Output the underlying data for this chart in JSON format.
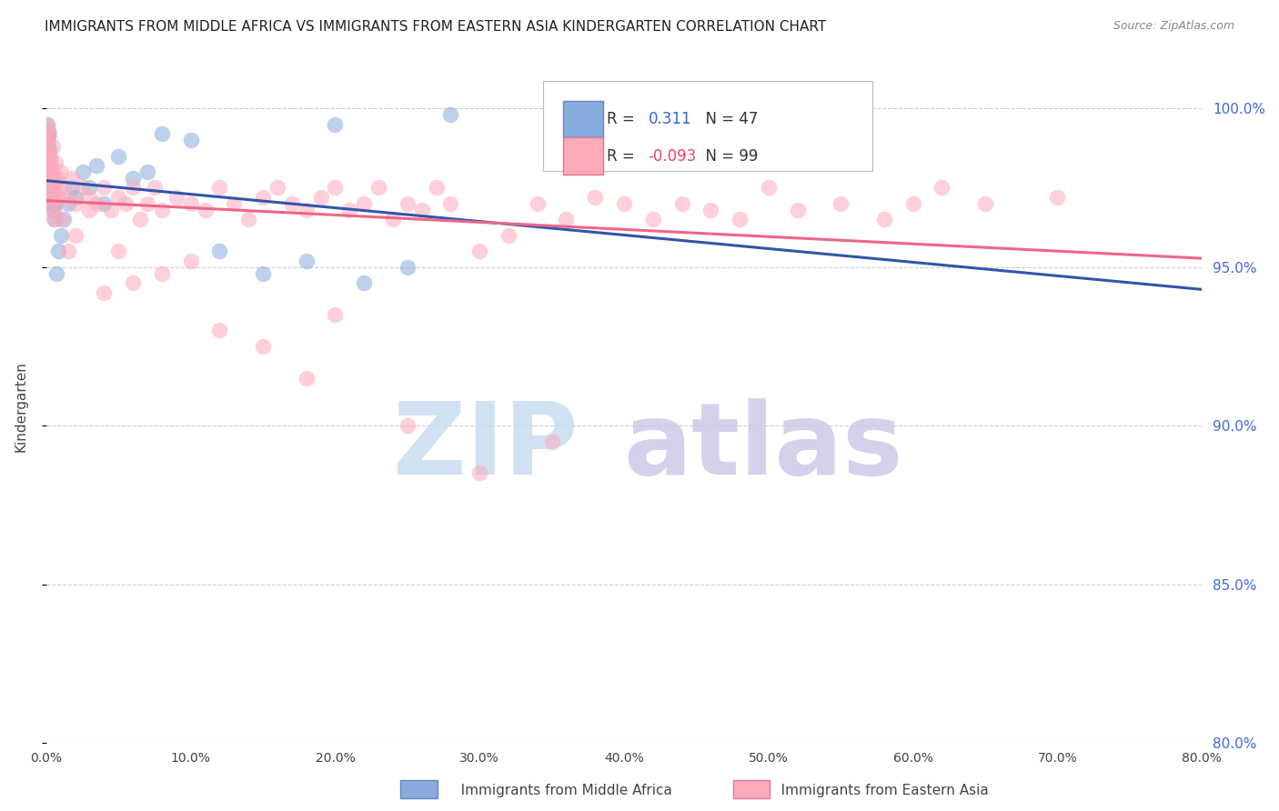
{
  "title": "IMMIGRANTS FROM MIDDLE AFRICA VS IMMIGRANTS FROM EASTERN ASIA KINDERGARTEN CORRELATION CHART",
  "source": "Source: ZipAtlas.com",
  "ylabel": "Kindergarten",
  "series_blue": {
    "label": "Immigrants from Middle Africa",
    "color_scatter": "#88AADD",
    "color_line": "#3355AA",
    "R": 0.311,
    "N": 47,
    "x": [
      0.05,
      0.08,
      0.1,
      0.1,
      0.12,
      0.15,
      0.15,
      0.18,
      0.2,
      0.2,
      0.22,
      0.25,
      0.25,
      0.28,
      0.3,
      0.3,
      0.32,
      0.35,
      0.38,
      0.4,
      0.45,
      0.5,
      0.55,
      0.6,
      0.7,
      0.8,
      1.0,
      1.2,
      1.5,
      1.8,
      2.0,
      2.5,
      3.0,
      3.5,
      4.0,
      5.0,
      6.0,
      7.0,
      8.0,
      10.0,
      12.0,
      15.0,
      18.0,
      20.0,
      22.0,
      25.0,
      28.0
    ],
    "y": [
      99.2,
      99.5,
      99.0,
      98.8,
      99.3,
      98.5,
      99.1,
      98.2,
      98.7,
      97.8,
      98.0,
      97.9,
      98.4,
      97.5,
      98.0,
      97.6,
      97.3,
      97.5,
      97.2,
      97.0,
      97.5,
      96.8,
      97.0,
      96.5,
      94.8,
      95.5,
      96.0,
      96.5,
      97.0,
      97.5,
      97.2,
      98.0,
      97.5,
      98.2,
      97.0,
      98.5,
      97.8,
      98.0,
      99.2,
      99.0,
      95.5,
      94.8,
      95.2,
      99.5,
      94.5,
      95.0,
      99.8
    ]
  },
  "series_pink": {
    "label": "Immigrants from Eastern Asia",
    "color_scatter": "#FFAABB",
    "color_line": "#EE6688",
    "R": -0.093,
    "N": 99,
    "x": [
      0.05,
      0.08,
      0.1,
      0.12,
      0.15,
      0.18,
      0.2,
      0.22,
      0.25,
      0.28,
      0.3,
      0.32,
      0.35,
      0.38,
      0.4,
      0.45,
      0.5,
      0.55,
      0.6,
      0.65,
      0.7,
      0.8,
      0.9,
      1.0,
      1.2,
      1.5,
      1.8,
      2.0,
      2.5,
      3.0,
      3.5,
      4.0,
      4.5,
      5.0,
      5.5,
      6.0,
      6.5,
      7.0,
      7.5,
      8.0,
      9.0,
      10.0,
      11.0,
      12.0,
      13.0,
      14.0,
      15.0,
      16.0,
      17.0,
      18.0,
      19.0,
      20.0,
      21.0,
      22.0,
      23.0,
      24.0,
      25.0,
      26.0,
      27.0,
      28.0,
      30.0,
      32.0,
      34.0,
      36.0,
      38.0,
      40.0,
      42.0,
      44.0,
      46.0,
      48.0,
      50.0,
      52.0,
      55.0,
      58.0,
      60.0,
      62.0,
      65.0,
      70.0,
      0.1,
      0.2,
      0.3,
      0.5,
      0.7,
      1.0,
      1.5,
      2.0,
      3.0,
      4.0,
      5.0,
      6.0,
      8.0,
      10.0,
      12.0,
      15.0,
      18.0,
      20.0,
      25.0,
      30.0,
      35.0
    ],
    "y": [
      99.5,
      99.3,
      99.0,
      98.8,
      98.5,
      98.3,
      99.2,
      98.0,
      97.8,
      98.5,
      97.5,
      98.2,
      97.3,
      98.0,
      97.6,
      98.8,
      97.2,
      97.8,
      97.0,
      98.3,
      97.5,
      97.8,
      97.2,
      98.0,
      97.5,
      97.2,
      97.8,
      97.0,
      97.5,
      97.2,
      97.0,
      97.5,
      96.8,
      97.2,
      97.0,
      97.5,
      96.5,
      97.0,
      97.5,
      96.8,
      97.2,
      97.0,
      96.8,
      97.5,
      97.0,
      96.5,
      97.2,
      97.5,
      97.0,
      96.8,
      97.2,
      97.5,
      96.8,
      97.0,
      97.5,
      96.5,
      97.0,
      96.8,
      97.5,
      97.0,
      95.5,
      96.0,
      97.0,
      96.5,
      97.2,
      97.0,
      96.5,
      97.0,
      96.8,
      96.5,
      97.5,
      96.8,
      97.0,
      96.5,
      97.0,
      97.5,
      97.0,
      97.2,
      98.5,
      97.8,
      96.8,
      96.5,
      97.2,
      96.5,
      95.5,
      96.0,
      96.8,
      94.2,
      95.5,
      94.5,
      94.8,
      95.2,
      93.0,
      92.5,
      91.5,
      93.5,
      90.0,
      88.5,
      89.5
    ]
  },
  "xlim": [
    0,
    80
  ],
  "ylim": [
    80,
    101.2
  ],
  "yticks": [
    80,
    85,
    90,
    95,
    100
  ],
  "ytick_labels_right": [
    "80.0%",
    "85.0%",
    "90.0%",
    "95.0%",
    "100.0%"
  ],
  "xticks": [
    0,
    10,
    20,
    30,
    40,
    50,
    60,
    70,
    80
  ],
  "xtick_labels": [
    "0.0%",
    "10.0%",
    "20.0%",
    "30.0%",
    "40.0%",
    "50.0%",
    "60.0%",
    "70.0%",
    "80.0%"
  ],
  "watermark_zip": "ZIP",
  "watermark_atlas": "atlas",
  "watermark_color_zip": "#C8DCF0",
  "watermark_color_atlas": "#D0C8E8",
  "background_color": "#FFFFFF",
  "grid_color": "#CCCCCC",
  "title_color": "#222222",
  "right_tick_color": "#4466DD",
  "source_color": "#888888"
}
